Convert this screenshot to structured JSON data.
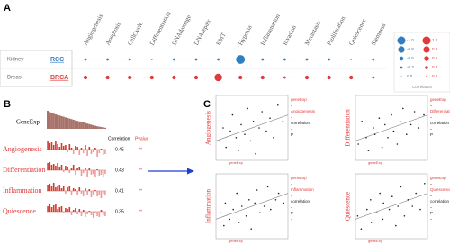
{
  "panels": {
    "a": {
      "label": "A",
      "columns": [
        "Angiogenesis",
        "Apoptosis",
        "CellCycle",
        "Differentiation",
        "DNAdamage",
        "DNArepair",
        "EMT",
        "Hypoxia",
        "Inflammation",
        "Invasion",
        "Metastasis",
        "Proliferation",
        "Quiescence",
        "Stemness"
      ],
      "rows": [
        {
          "tissue": "Kidney",
          "cancer": "RCC",
          "color": "#2f7fc1",
          "values": [
            -0.2,
            -0.2,
            -0.2,
            -0.1,
            -0.2,
            -0.2,
            -0.2,
            -0.7,
            -0.2,
            -0.2,
            -0.2,
            -0.2,
            -0.1,
            -0.2
          ]
        },
        {
          "tissue": "Breast",
          "cancer": "BRCA",
          "color": "#e03a3a",
          "values": [
            0.3,
            0.3,
            0.3,
            0.3,
            0.3,
            0.3,
            0.6,
            0.3,
            0.3,
            0.2,
            0.3,
            0.3,
            0.3,
            0.2
          ]
        }
      ],
      "legend": {
        "title": "Correlation",
        "negative": {
          "color": "#2f7fc1",
          "values": [
            {
              "value": -1,
              "label": "-1.0"
            },
            -0.8,
            -0.5,
            -0.3,
            {
              "value": 0,
              "label": "0.0"
            }
          ]
        },
        "positive": {
          "color": "#e03a3a",
          "values": [
            {
              "value": 1,
              "label": "1.0"
            },
            0.8,
            0.6,
            0.4,
            0.2
          ]
        }
      }
    },
    "b": {
      "label": "B",
      "gene": "GeneExp",
      "expression": [
        1,
        0.93,
        0.88,
        0.84,
        0.8,
        0.77,
        0.74,
        0.7,
        0.67,
        0.63,
        0.6,
        0.57,
        0.54,
        0.5,
        0.47,
        0.44,
        0.41,
        0.38,
        0.35,
        0.32,
        0.29,
        0.26,
        0.23,
        0.2,
        0.17,
        0.14,
        0.12,
        0.1,
        0.08,
        0.06
      ],
      "header_correlation": "Correlation",
      "header_pvalue": "Pvalue",
      "rows": [
        {
          "name": "Angiogenesis",
          "correlation": 0.45,
          "pvalue": "**",
          "trace": [
            0.9,
            0.7,
            0.8,
            0.5,
            0.9,
            0.6,
            0.3,
            0.7,
            0.4,
            0.5,
            -0.3,
            0.6,
            0.2,
            -0.5,
            0.4,
            0.3,
            -0.6,
            0.2,
            -0.4,
            0.5,
            -0.7,
            0.3,
            -0.5,
            -0.3,
            0.2,
            -0.8,
            -0.4,
            0.1,
            -0.6,
            -0.5
          ]
        },
        {
          "name": "Differentiation",
          "correlation": 0.43,
          "pvalue": "**",
          "trace": [
            0.8,
            0.9,
            0.6,
            0.7,
            0.5,
            0.8,
            0.4,
            0.6,
            -0.2,
            0.5,
            0.4,
            -0.3,
            0.3,
            0.6,
            -0.5,
            0.2,
            0.4,
            -0.6,
            -0.3,
            0.3,
            -0.7,
            0.2,
            -0.5,
            -0.4,
            -0.8,
            0.1,
            -0.6,
            -0.5,
            -0.7,
            -0.4
          ]
        },
        {
          "name": "Inflammation",
          "correlation": 0.41,
          "pvalue": "**",
          "trace": [
            0.7,
            0.8,
            0.6,
            0.9,
            0.4,
            0.5,
            0.7,
            0.3,
            0.6,
            -0.3,
            0.4,
            0.5,
            -0.4,
            0.3,
            0.2,
            -0.5,
            0.4,
            -0.3,
            -0.6,
            0.3,
            -0.4,
            0.2,
            -0.7,
            -0.5,
            0.1,
            -0.6,
            -0.4,
            -0.8,
            -0.3,
            -0.5
          ]
        },
        {
          "name": "Quiescence",
          "correlation": 0.35,
          "pvalue": "**",
          "trace": [
            0.6,
            0.8,
            0.5,
            0.7,
            0.9,
            0.3,
            0.5,
            0.6,
            -0.2,
            0.4,
            0.3,
            0.5,
            -0.4,
            0.2,
            0.4,
            -0.3,
            0.3,
            -0.5,
            0.2,
            -0.6,
            -0.3,
            0.1,
            -0.4,
            -0.7,
            -0.2,
            -0.5,
            -0.6,
            0.2,
            -0.4,
            -0.5
          ]
        }
      ]
    },
    "c": {
      "label": "C",
      "x_label": "geneExp",
      "plots": [
        {
          "name": "Angiogenesis",
          "notes": [
            "geneExp",
            "Angiogenesis",
            "correlation",
            "P"
          ],
          "x": [
            0.05,
            0.1,
            0.14,
            0.2,
            0.23,
            0.28,
            0.31,
            0.35,
            0.4,
            0.44,
            0.48,
            0.52,
            0.55,
            0.6,
            0.64,
            0.7,
            0.75,
            0.8,
            0.86,
            0.93
          ],
          "y": [
            0.3,
            0.5,
            0.2,
            0.45,
            0.7,
            0.35,
            0.15,
            0.55,
            0.4,
            0.8,
            0.3,
            0.6,
            0.1,
            0.5,
            0.75,
            0.45,
            0.65,
            0.35,
            0.85,
            0.6
          ]
        },
        {
          "name": "Differentiation",
          "notes": [
            "geneExp",
            "Differentiation",
            "correlation",
            "P"
          ],
          "x": [
            0.04,
            0.09,
            0.15,
            0.18,
            0.25,
            0.27,
            0.33,
            0.37,
            0.41,
            0.45,
            0.5,
            0.53,
            0.58,
            0.62,
            0.66,
            0.71,
            0.77,
            0.82,
            0.88,
            0.95
          ],
          "y": [
            0.25,
            0.6,
            0.35,
            0.15,
            0.5,
            0.4,
            0.65,
            0.2,
            0.55,
            0.35,
            0.7,
            0.45,
            0.25,
            0.6,
            0.8,
            0.4,
            0.55,
            0.75,
            0.5,
            0.7
          ]
        },
        {
          "name": "Inflammation",
          "notes": [
            "geneExp",
            "Inflammation",
            "correlation",
            "P"
          ],
          "x": [
            0.06,
            0.11,
            0.13,
            0.19,
            0.24,
            0.29,
            0.32,
            0.36,
            0.42,
            0.46,
            0.49,
            0.54,
            0.57,
            0.61,
            0.67,
            0.72,
            0.76,
            0.83,
            0.87,
            0.94
          ],
          "y": [
            0.4,
            0.2,
            0.55,
            0.3,
            0.45,
            0.7,
            0.25,
            0.5,
            0.35,
            0.6,
            0.15,
            0.55,
            0.75,
            0.4,
            0.5,
            0.8,
            0.45,
            0.6,
            0.7,
            0.55
          ]
        },
        {
          "name": "Quiescence",
          "notes": [
            "geneExp",
            "Quiescence",
            "correlation",
            "P"
          ],
          "x": [
            0.03,
            0.08,
            0.16,
            0.21,
            0.22,
            0.3,
            0.34,
            0.38,
            0.39,
            0.47,
            0.51,
            0.56,
            0.59,
            0.63,
            0.68,
            0.73,
            0.79,
            0.84,
            0.9,
            0.96
          ],
          "y": [
            0.35,
            0.15,
            0.45,
            0.6,
            0.25,
            0.4,
            0.7,
            0.3,
            0.55,
            0.45,
            0.65,
            0.2,
            0.5,
            0.8,
            0.35,
            0.6,
            0.5,
            0.7,
            0.45,
            0.85
          ]
        }
      ]
    }
  }
}
